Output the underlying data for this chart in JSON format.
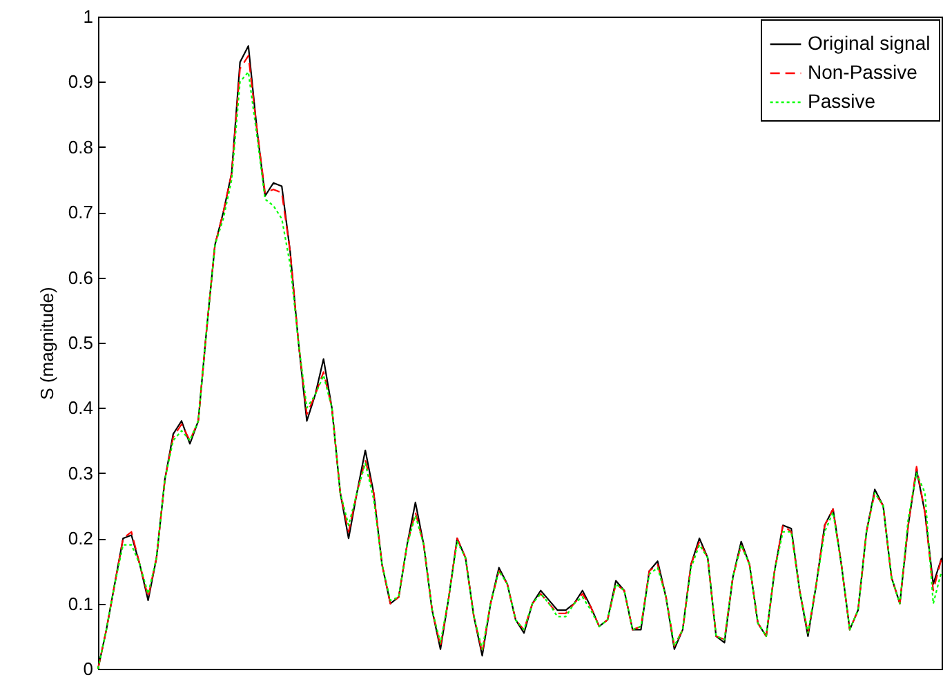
{
  "chart_data": {
    "type": "line",
    "ylabel": "S (magnitude)",
    "categories": [
      null,
      null,
      null,
      null,
      null,
      null,
      null,
      null,
      null,
      null,
      null,
      null,
      null,
      null,
      null,
      null,
      null,
      null,
      null,
      null,
      null,
      null,
      null,
      null,
      null,
      null,
      null,
      null,
      null,
      null,
      null,
      null,
      null,
      null,
      null,
      null,
      null,
      null,
      null,
      null,
      null,
      null,
      null,
      null,
      null,
      null,
      null,
      null,
      null,
      null,
      null,
      null,
      null,
      null,
      null,
      null,
      null,
      null,
      null,
      null,
      null,
      null,
      null,
      null,
      null,
      null,
      null,
      null,
      null,
      null,
      null,
      null,
      null,
      null,
      null,
      null,
      null,
      null,
      null,
      null,
      null,
      null,
      null,
      null,
      null,
      null,
      null,
      null,
      null,
      null,
      null,
      null,
      null,
      null,
      null,
      null,
      null,
      null,
      null,
      null,
      null,
      null
    ],
    "series": [
      {
        "name": "Original signal",
        "color": "#000000",
        "line_style": "solid",
        "values": [
          0,
          0.06,
          0.13,
          0.2,
          0.205,
          0.16,
          0.105,
          0.17,
          0.29,
          0.36,
          0.38,
          0.345,
          0.38,
          0.52,
          0.65,
          0.7,
          0.76,
          0.93,
          0.955,
          0.83,
          0.725,
          0.745,
          0.74,
          0.64,
          0.5,
          0.38,
          0.42,
          0.475,
          0.4,
          0.27,
          0.2,
          0.27,
          0.335,
          0.27,
          0.16,
          0.1,
          0.11,
          0.19,
          0.255,
          0.19,
          0.09,
          0.03,
          0.11,
          0.2,
          0.17,
          0.08,
          0.02,
          0.1,
          0.155,
          0.13,
          0.075,
          0.055,
          0.1,
          0.12,
          0.105,
          0.09,
          0.09,
          0.1,
          0.12,
          0.095,
          0.065,
          0.075,
          0.135,
          0.12,
          0.06,
          0.06,
          0.15,
          0.165,
          0.11,
          0.03,
          0.06,
          0.16,
          0.2,
          0.17,
          0.05,
          0.04,
          0.14,
          0.195,
          0.16,
          0.07,
          0.05,
          0.15,
          0.22,
          0.215,
          0.12,
          0.05,
          0.13,
          0.22,
          0.245,
          0.16,
          0.06,
          0.09,
          0.21,
          0.275,
          0.25,
          0.14,
          0.1,
          0.22,
          0.305,
          0.24,
          0.13,
          0.17
        ]
      },
      {
        "name": "Non-Passive",
        "color": "#ff0000",
        "line_style": "dashed",
        "values": [
          0,
          0.06,
          0.13,
          0.2,
          0.21,
          0.16,
          0.11,
          0.17,
          0.29,
          0.355,
          0.375,
          0.35,
          0.38,
          0.52,
          0.65,
          0.7,
          0.76,
          0.92,
          0.94,
          0.83,
          0.73,
          0.735,
          0.73,
          0.64,
          0.5,
          0.39,
          0.42,
          0.455,
          0.4,
          0.27,
          0.21,
          0.27,
          0.32,
          0.27,
          0.16,
          0.1,
          0.11,
          0.19,
          0.24,
          0.19,
          0.09,
          0.035,
          0.11,
          0.2,
          0.17,
          0.08,
          0.025,
          0.1,
          0.15,
          0.13,
          0.075,
          0.06,
          0.1,
          0.115,
          0.1,
          0.085,
          0.085,
          0.1,
          0.115,
          0.095,
          0.065,
          0.075,
          0.13,
          0.12,
          0.06,
          0.065,
          0.15,
          0.16,
          0.11,
          0.035,
          0.06,
          0.16,
          0.195,
          0.17,
          0.05,
          0.045,
          0.14,
          0.19,
          0.16,
          0.07,
          0.05,
          0.15,
          0.22,
          0.21,
          0.12,
          0.055,
          0.13,
          0.22,
          0.245,
          0.16,
          0.06,
          0.09,
          0.21,
          0.27,
          0.25,
          0.14,
          0.1,
          0.22,
          0.31,
          0.24,
          0.12,
          0.17
        ]
      },
      {
        "name": "Passive",
        "color": "#00ff00",
        "line_style": "dotted",
        "values": [
          0,
          0.06,
          0.13,
          0.19,
          0.19,
          0.16,
          0.115,
          0.17,
          0.29,
          0.35,
          0.365,
          0.35,
          0.38,
          0.52,
          0.65,
          0.69,
          0.75,
          0.9,
          0.915,
          0.82,
          0.72,
          0.71,
          0.69,
          0.62,
          0.5,
          0.4,
          0.42,
          0.45,
          0.4,
          0.27,
          0.22,
          0.27,
          0.315,
          0.26,
          0.16,
          0.105,
          0.11,
          0.19,
          0.235,
          0.19,
          0.09,
          0.04,
          0.11,
          0.195,
          0.17,
          0.08,
          0.03,
          0.1,
          0.15,
          0.13,
          0.075,
          0.06,
          0.1,
          0.115,
          0.1,
          0.08,
          0.08,
          0.1,
          0.11,
          0.09,
          0.065,
          0.075,
          0.13,
          0.12,
          0.06,
          0.065,
          0.145,
          0.155,
          0.11,
          0.035,
          0.06,
          0.155,
          0.19,
          0.17,
          0.05,
          0.045,
          0.14,
          0.19,
          0.16,
          0.07,
          0.05,
          0.15,
          0.21,
          0.21,
          0.12,
          0.055,
          0.13,
          0.21,
          0.24,
          0.16,
          0.06,
          0.09,
          0.21,
          0.27,
          0.25,
          0.14,
          0.1,
          0.23,
          0.3,
          0.27,
          0.1,
          0.15
        ]
      }
    ],
    "ylim": [
      0,
      1
    ],
    "yticks": [
      0,
      0.1,
      0.2,
      0.3,
      0.4,
      0.5,
      0.6,
      0.7,
      0.8,
      0.9,
      1
    ],
    "tick_labels": "y",
    "legend": "top right"
  }
}
